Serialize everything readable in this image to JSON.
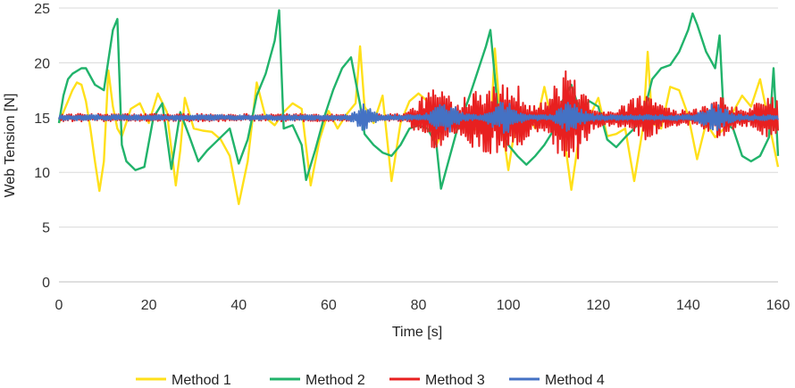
{
  "chart_data": {
    "type": "line",
    "title": "",
    "xlabel": "Time [s]",
    "ylabel": "Web Tension [N]",
    "xlim": [
      0,
      160
    ],
    "ylim": [
      0,
      25
    ],
    "x_ticks": [
      0,
      20,
      40,
      60,
      80,
      100,
      120,
      140,
      160
    ],
    "y_ticks": [
      0,
      5,
      10,
      15,
      20,
      25
    ],
    "grid": "horizontal",
    "legend_position": "bottom",
    "series": [
      {
        "name": "Method 1",
        "color": "#FFE01A",
        "x": [
          0,
          1,
          2,
          3,
          4,
          5,
          6,
          7,
          8,
          9,
          10,
          11,
          12,
          13,
          14,
          16,
          18,
          20,
          22,
          24,
          26,
          27,
          28,
          30,
          32,
          34,
          36,
          38,
          40,
          42,
          44,
          46,
          48,
          50,
          52,
          54,
          56,
          58,
          60,
          62,
          64,
          66,
          67,
          68,
          70,
          72,
          74,
          76,
          78,
          80,
          82,
          84,
          86,
          88,
          90,
          92,
          94,
          96,
          97,
          98,
          100,
          102,
          104,
          106,
          108,
          110,
          112,
          114,
          116,
          118,
          120,
          122,
          124,
          126,
          128,
          130,
          131,
          132,
          134,
          136,
          138,
          140,
          142,
          144,
          146,
          148,
          150,
          152,
          154,
          156,
          158,
          160
        ],
        "y": [
          14.5,
          15.5,
          16.5,
          17.5,
          18.2,
          18,
          16.5,
          14,
          11,
          8.3,
          11,
          19.3,
          16,
          14,
          13.3,
          15.8,
          16.3,
          14.5,
          17.2,
          15.5,
          8.8,
          12,
          16.8,
          14,
          13.8,
          13.7,
          13,
          11.5,
          7.1,
          11,
          18.2,
          15,
          14.3,
          15.5,
          16.3,
          15.8,
          8.8,
          13,
          15.6,
          14,
          15.3,
          16.3,
          21.5,
          16,
          14.5,
          17,
          9.2,
          14.5,
          16.5,
          17.2,
          16.5,
          12.5,
          14.5,
          15.5,
          15.2,
          14,
          13.8,
          13.5,
          21.3,
          16,
          10.2,
          15.5,
          15.3,
          14,
          17.8,
          14,
          14.5,
          8.4,
          14,
          15,
          16.8,
          13.3,
          13.5,
          14,
          9.2,
          14.2,
          21,
          14.5,
          14,
          17.8,
          17.5,
          15.2,
          11.2,
          14.5,
          13.2,
          14,
          15.5,
          17,
          16,
          18.5,
          14.5,
          10.5
        ]
      },
      {
        "name": "Method 2",
        "color": "#21B36B",
        "x": [
          0,
          1,
          2,
          3,
          5,
          6,
          8,
          10,
          12,
          13,
          14,
          15,
          17,
          19,
          21,
          23,
          25,
          27,
          29,
          31,
          33,
          35,
          38,
          40,
          42,
          44,
          46,
          48,
          49,
          50,
          52,
          54,
          55,
          57,
          59,
          61,
          63,
          65,
          67,
          68,
          70,
          72,
          74,
          76,
          78,
          80,
          82,
          84,
          85,
          87,
          89,
          91,
          93,
          95,
          96,
          98,
          100,
          102,
          104,
          106,
          108,
          110,
          112,
          114,
          116,
          118,
          120,
          122,
          124,
          126,
          128,
          130,
          132,
          134,
          136,
          138,
          140,
          141,
          142,
          144,
          146,
          147,
          148,
          150,
          152,
          154,
          156,
          158,
          159,
          160
        ],
        "y": [
          14.5,
          17,
          18.5,
          19,
          19.5,
          19.5,
          18,
          17.5,
          23,
          24,
          12.5,
          11,
          10.2,
          10.5,
          15,
          16.3,
          10.3,
          15.5,
          13.3,
          11,
          12,
          12.8,
          14,
          10.8,
          13,
          17,
          19,
          22,
          24.8,
          14,
          14.3,
          12.5,
          9.3,
          12,
          15,
          17.5,
          19.5,
          20.5,
          16.2,
          13.5,
          12.5,
          11.8,
          11.5,
          12.5,
          14,
          14.3,
          14,
          12.5,
          8.5,
          11.5,
          14.5,
          16.5,
          19,
          21.5,
          23,
          14.3,
          12.5,
          11.5,
          10.7,
          11.5,
          12.5,
          13.8,
          16.5,
          18,
          15.5,
          16.5,
          16,
          13,
          12.3,
          13.2,
          14,
          15.2,
          18.5,
          19.5,
          19.8,
          21,
          23,
          24.5,
          23.5,
          21,
          19.5,
          22.5,
          14.5,
          14,
          11.5,
          11,
          11.5,
          13.2,
          19.5,
          11.5
        ]
      },
      {
        "name": "Method 3",
        "color": "#E82020",
        "x": [],
        "y": []
      },
      {
        "name": "Method 4",
        "color": "#4472C4",
        "x": [],
        "y": []
      }
    ]
  }
}
